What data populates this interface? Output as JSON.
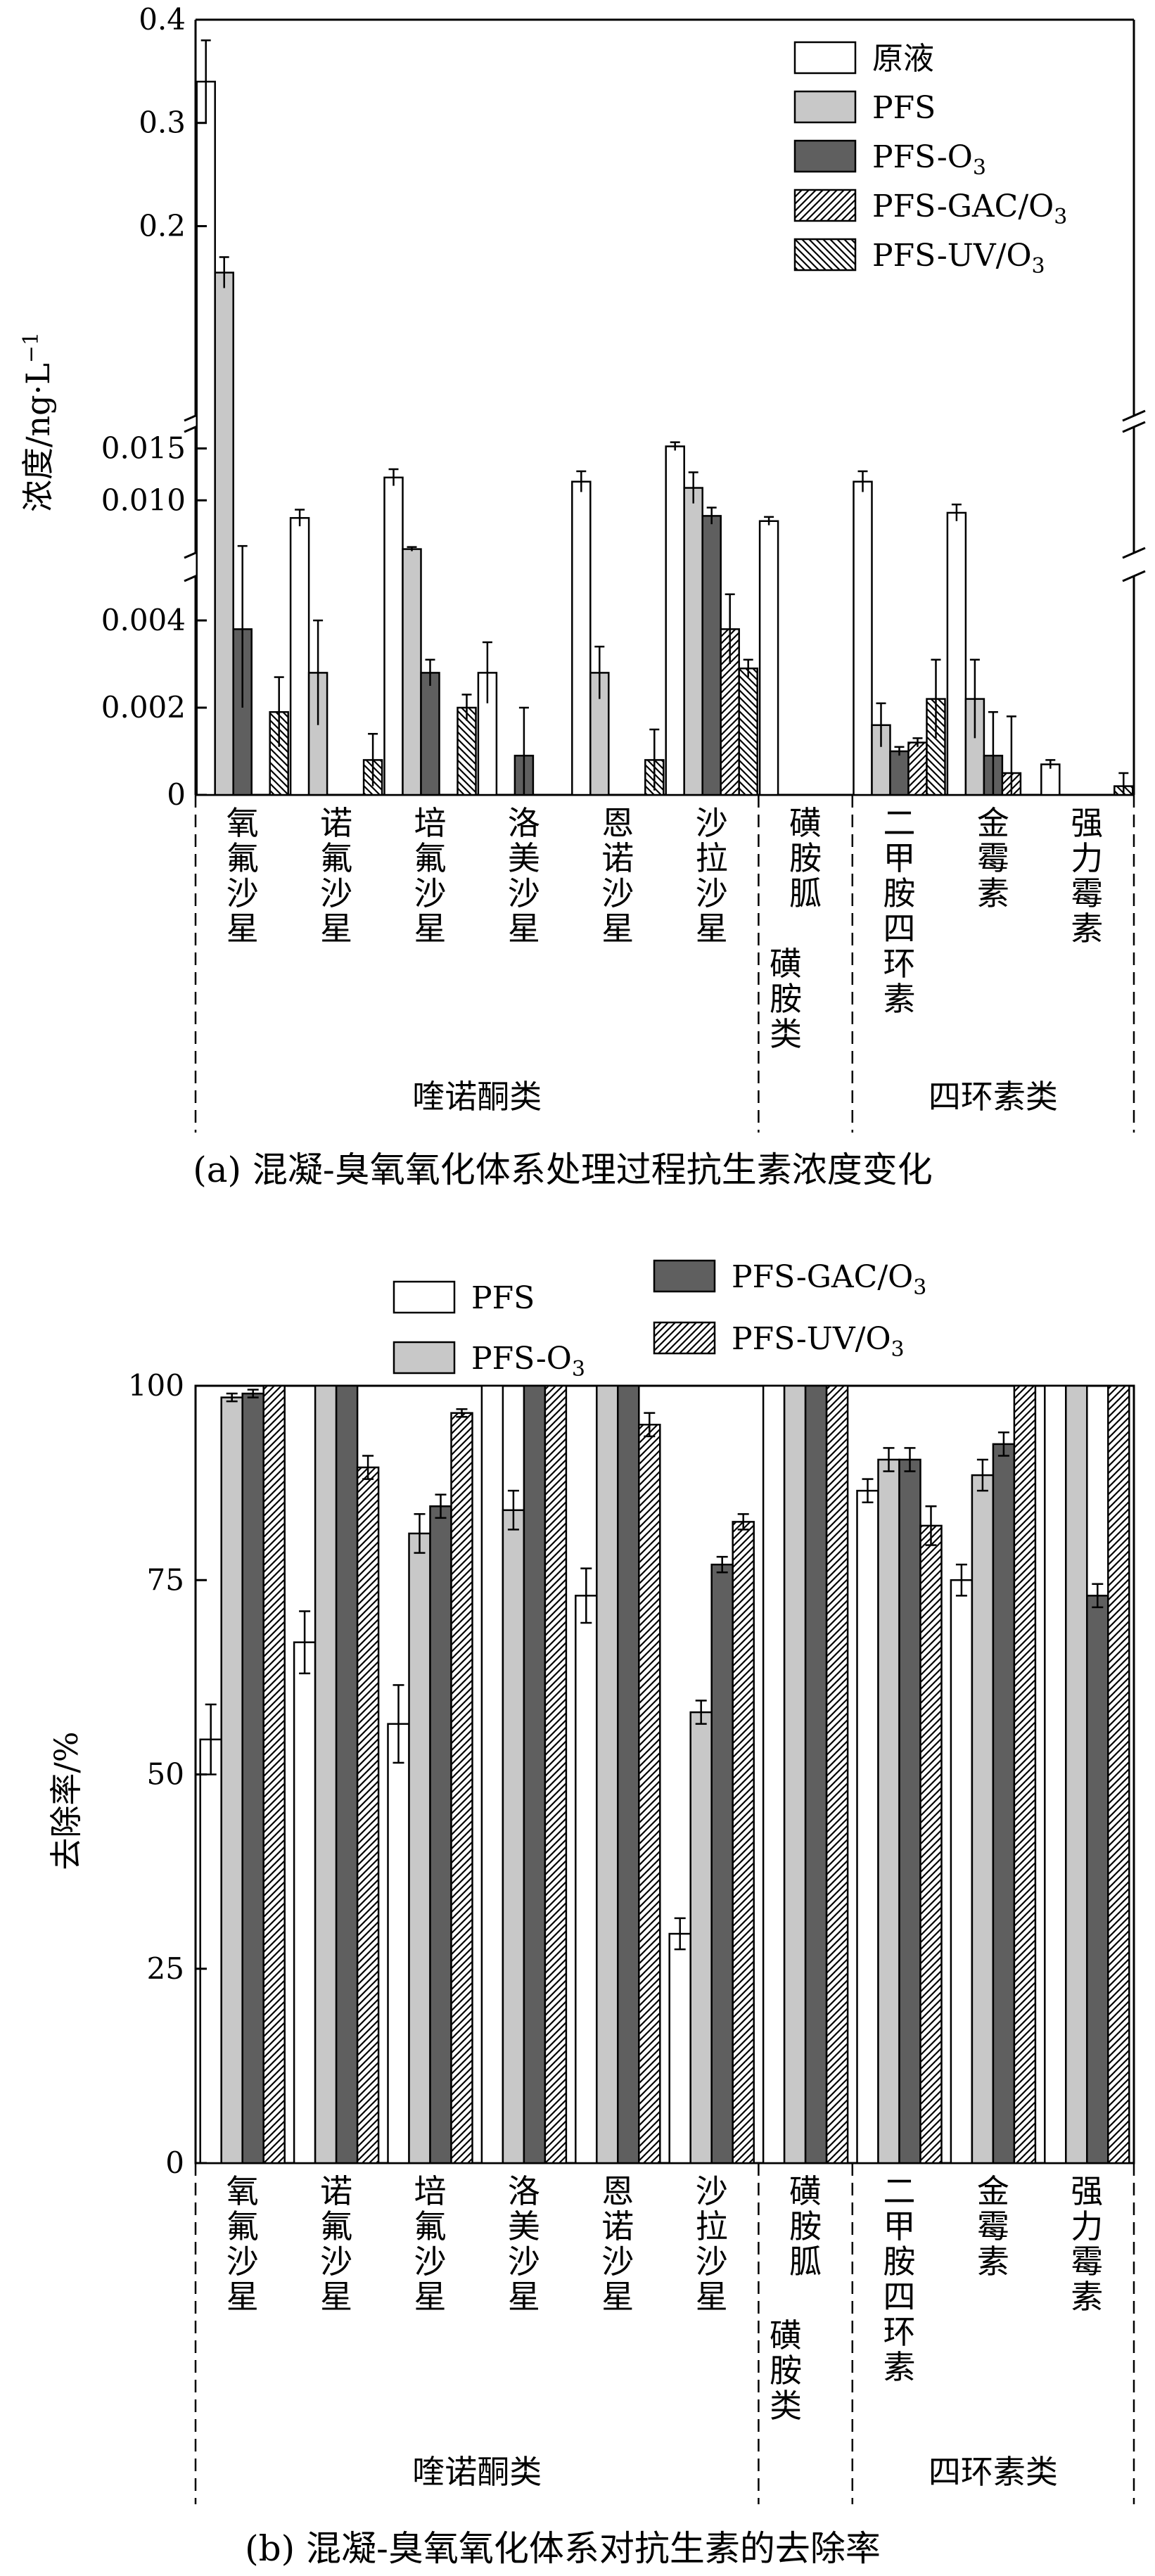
{
  "colors": {
    "raw": "#ffffff",
    "PFS": "#c8c8c8",
    "PFS-O3": "#5f5f5f",
    "GAC": "hatch-diagonal",
    "UV": "hatch-back-diagonal"
  },
  "chart_data": [
    {
      "type": "bar",
      "panel": "a",
      "caption": "(a) 混凝-臭氧氧化体系处理过程抗生素浓度变化",
      "ylabel": "浓度/ng·L⁻¹",
      "axis": {
        "broken": true,
        "segments": [
          {
            "range": [
              0,
              0.005
            ],
            "ticks": [
              "0",
              "0.002",
              "0.004"
            ]
          },
          {
            "range": [
              0.005,
              0.017
            ],
            "ticks": [
              "0.010",
              "0.015"
            ]
          },
          {
            "range": [
              0.017,
              0.4
            ],
            "ticks": [
              "0.2",
              "0.3",
              "0.4"
            ]
          }
        ]
      },
      "categories": [
        "氧氟沙星",
        "诺氟沙星",
        "培氟沙星",
        "洛美沙星",
        "恩诺沙星",
        "沙拉沙星",
        "磺胺胍",
        "二甲胺四环素",
        "金霉素",
        "强力霉素"
      ],
      "groups": [
        {
          "label": "喹诺酮类",
          "categories": [
            0,
            5
          ]
        },
        {
          "label": "磺胺类",
          "categories": [
            6,
            6
          ]
        },
        {
          "label": "四环素类",
          "categories": [
            7,
            9
          ]
        }
      ],
      "legend": [
        "原液",
        "PFS",
        "PFS-O₃",
        "PFS-GAC/O₃",
        "PFS-UV/O₃"
      ],
      "legend_position": "top-right",
      "series": [
        {
          "name": "原液",
          "values": [
            0.34,
            0.0083,
            0.0122,
            0.0028,
            0.0118,
            0.0152,
            0.008,
            0.0118,
            0.0088,
            0.0007
          ],
          "err": [
            0.04,
            0.0008,
            0.0008,
            0.0007,
            0.001,
            0.0004,
            0.0004,
            0.001,
            0.0008,
            0.0001
          ]
        },
        {
          "name": "PFS",
          "values": [
            0.155,
            0.0028,
            0.0053,
            0,
            0.0028,
            0.0112,
            0,
            0.0016,
            0.0022,
            0
          ],
          "err": [
            0.015,
            0.0012,
            0.0002,
            0,
            0.0006,
            0.0015,
            0,
            0.0005,
            0.0009,
            0
          ]
        },
        {
          "name": "PFS-O₃",
          "values": [
            0.0038,
            0,
            0.0028,
            0.0009,
            0,
            0.0085,
            0,
            0.001,
            0.0009,
            0
          ],
          "err": [
            0.0018,
            0,
            0.0003,
            0.0011,
            0,
            0.0008,
            0,
            0.0001,
            0.001,
            0
          ]
        },
        {
          "name": "PFS-GAC/O₃",
          "values": [
            0,
            0,
            0,
            0,
            0,
            0.0038,
            0,
            0.0012,
            0.0005,
            0
          ],
          "err": [
            0,
            0,
            0,
            0,
            0,
            0.0008,
            0,
            0.0001,
            0.0013,
            0
          ]
        },
        {
          "name": "PFS-UV/O₃",
          "values": [
            0.0019,
            0.0008,
            0.002,
            0,
            0.0008,
            0.0029,
            0,
            0.0022,
            0,
            0.0002
          ],
          "err": [
            0.0008,
            0.0006,
            0.0003,
            0,
            0.0007,
            0.0002,
            0,
            0.0009,
            0,
            0.0003
          ]
        }
      ]
    },
    {
      "type": "bar",
      "panel": "b",
      "caption": "(b) 混凝-臭氧氧化体系对抗生素的去除率",
      "ylabel": "去除率/%",
      "ylim": [
        0,
        100
      ],
      "yticks": [
        "0",
        "25",
        "50",
        "75",
        "100"
      ],
      "categories": [
        "氧氟沙星",
        "诺氟沙星",
        "培氟沙星",
        "洛美沙星",
        "恩诺沙星",
        "沙拉沙星",
        "磺胺胍",
        "二甲胺四环素",
        "金霉素",
        "强力霉素"
      ],
      "groups": [
        {
          "label": "喹诺酮类",
          "categories": [
            0,
            5
          ]
        },
        {
          "label": "磺胺类",
          "categories": [
            6,
            6
          ]
        },
        {
          "label": "四环素类",
          "categories": [
            7,
            9
          ]
        }
      ],
      "legend": [
        "PFS",
        "PFS-O₃",
        "PFS-GAC/O₃",
        "PFS-UV/O₃"
      ],
      "legend_position": "top",
      "series": [
        {
          "name": "PFS",
          "values": [
            54.5,
            67,
            56.5,
            100,
            73,
            29.5,
            100,
            86.5,
            75,
            100
          ],
          "err": [
            4.5,
            4,
            5,
            0,
            3.5,
            2,
            0,
            1.5,
            2,
            0
          ]
        },
        {
          "name": "PFS-O₃",
          "values": [
            98.5,
            100,
            81,
            84,
            100,
            58,
            100,
            90.5,
            88.5,
            100
          ],
          "err": [
            0.5,
            0,
            2.5,
            2.5,
            0,
            1.5,
            0,
            1.5,
            2,
            0
          ]
        },
        {
          "name": "PFS-GAC/O₃",
          "values": [
            99,
            100,
            84.5,
            100,
            100,
            77,
            100,
            90.5,
            92.5,
            73
          ],
          "err": [
            0.5,
            0,
            1.5,
            0,
            0,
            1,
            0,
            1.5,
            1.5,
            1.5
          ]
        },
        {
          "name": "PFS-UV/O₃",
          "values": [
            100,
            89.5,
            96.5,
            100,
            95,
            82.5,
            100,
            82,
            100,
            100
          ],
          "err": [
            0,
            1.5,
            0.5,
            0,
            1.5,
            1,
            0,
            2.5,
            0,
            0
          ]
        }
      ]
    }
  ]
}
